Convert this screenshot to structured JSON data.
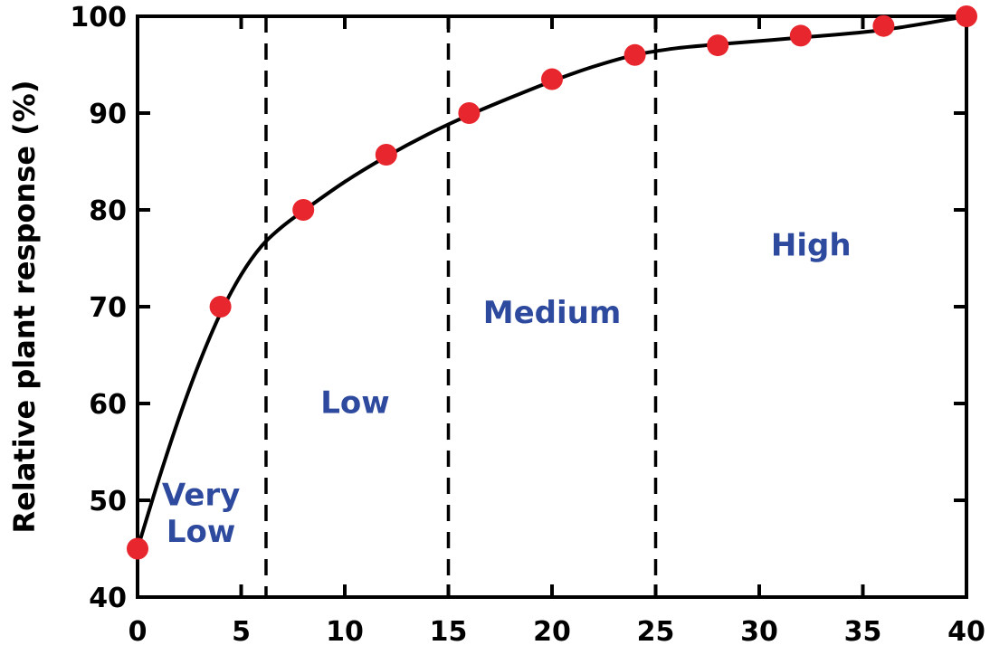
{
  "chart_data": {
    "type": "scatter",
    "title": "",
    "xlabel": "",
    "ylabel": "Relative plant response (%)",
    "xlim": [
      0,
      40
    ],
    "ylim": [
      40,
      100
    ],
    "xticks": [
      0,
      5,
      10,
      15,
      20,
      25,
      30,
      35,
      40
    ],
    "yticks": [
      40,
      50,
      60,
      70,
      80,
      90,
      100
    ],
    "grid": false,
    "points": {
      "x": [
        0,
        4,
        8,
        12,
        16,
        20,
        24,
        28,
        32,
        36,
        40
      ],
      "y": [
        45,
        70,
        80,
        85.7,
        90,
        93.5,
        96,
        97,
        98,
        99,
        100
      ],
      "color": "#e8262e"
    },
    "fit_curve": {
      "x": [
        0,
        1,
        2,
        3,
        4,
        5,
        6,
        7,
        8,
        10,
        12,
        14,
        16,
        18,
        20,
        22,
        24,
        26,
        28,
        32,
        36,
        40
      ],
      "y": [
        45,
        52,
        58.5,
        64.3,
        69.3,
        73.3,
        76.3,
        78.3,
        79.9,
        82.9,
        85.5,
        87.8,
        89.8,
        91.6,
        93.3,
        94.8,
        96,
        96.7,
        97.1,
        97.8,
        98.6,
        100
      ],
      "color": "#000000"
    },
    "zone_boundaries": [
      6.2,
      15,
      25
    ],
    "zones": [
      "Very Low",
      "Low",
      "Medium",
      "High"
    ],
    "zone_color": "#2e4a9e"
  }
}
